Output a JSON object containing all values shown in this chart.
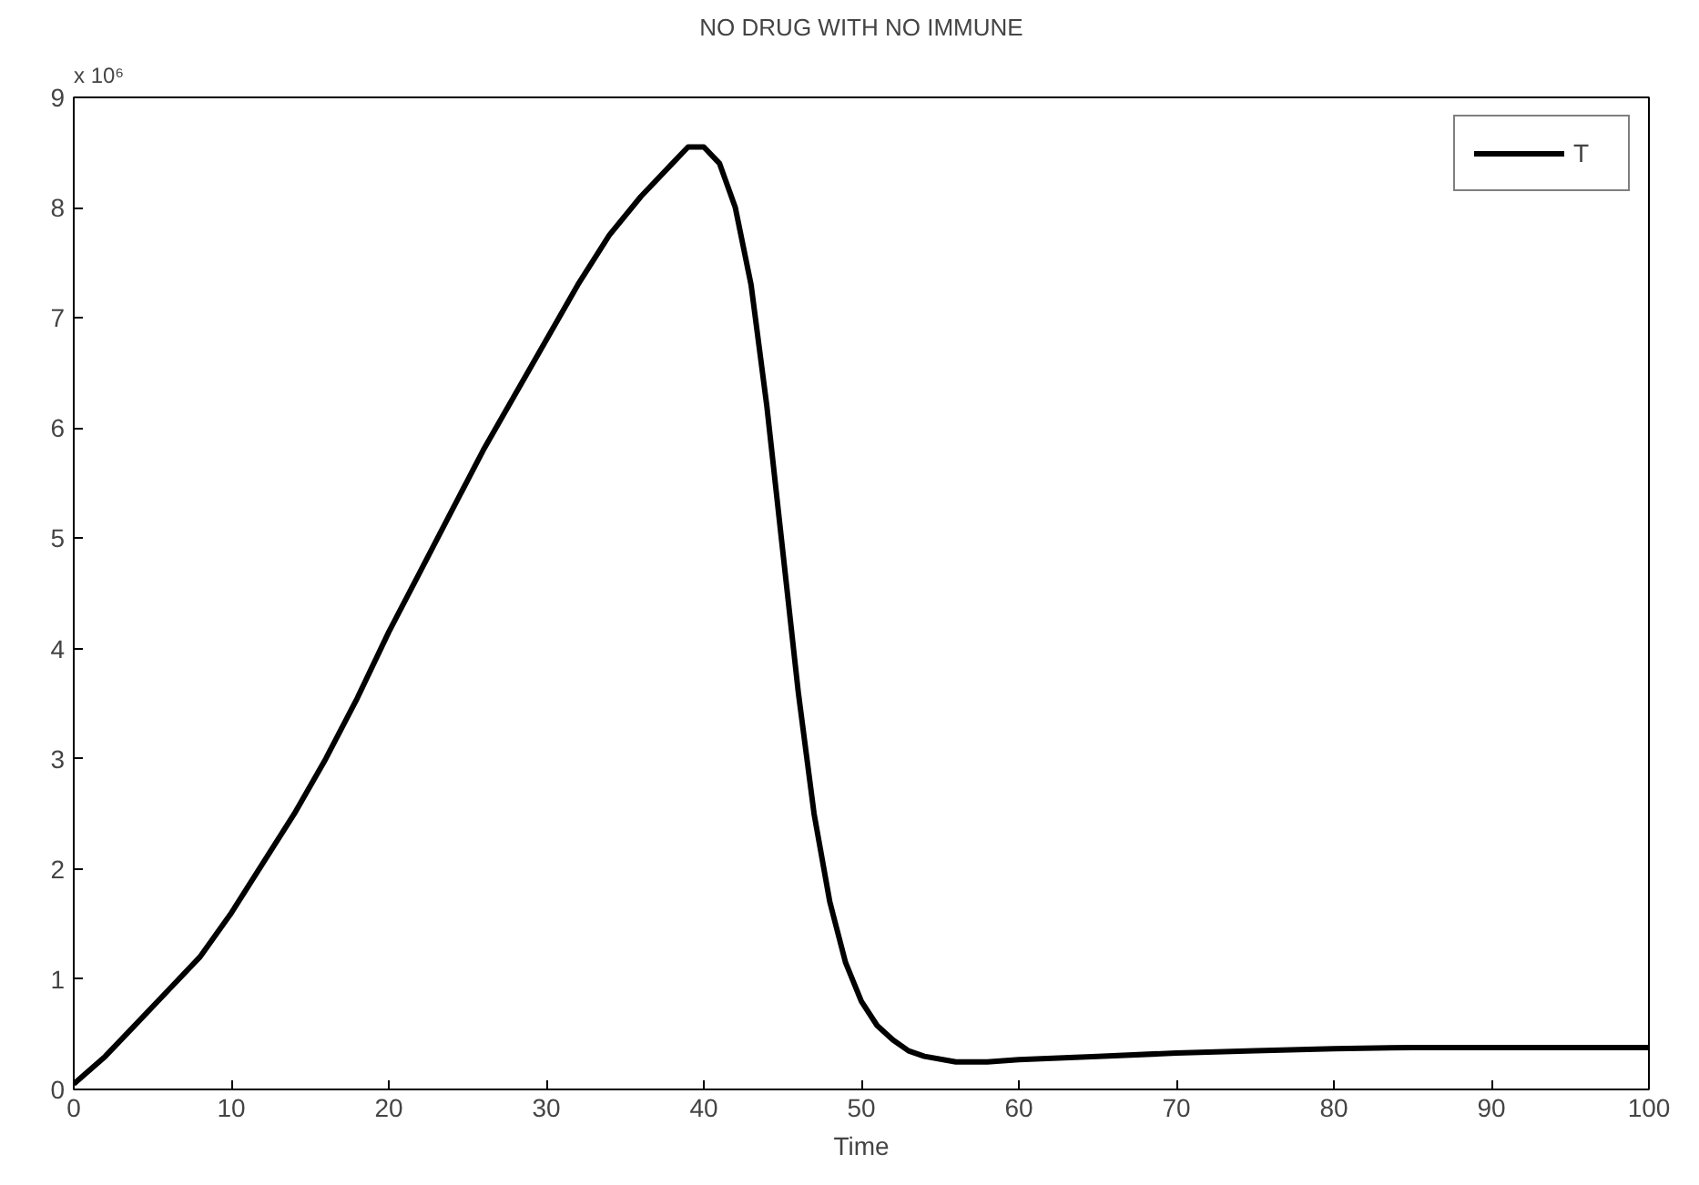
{
  "chart_data": {
    "type": "line",
    "title": "NO DRUG WITH NO IMMUNE",
    "xlabel": "Time",
    "annotations": [
      "x 10⁶"
    ],
    "x": [
      0,
      2,
      4,
      6,
      8,
      10,
      12,
      14,
      16,
      18,
      20,
      22,
      24,
      26,
      28,
      30,
      32,
      34,
      36,
      38,
      39,
      40,
      41,
      42,
      43,
      44,
      45,
      46,
      47,
      48,
      49,
      50,
      51,
      52,
      53,
      54,
      56,
      58,
      60,
      65,
      70,
      75,
      80,
      85,
      90,
      95,
      100
    ],
    "series": [
      {
        "name": "T",
        "color": "#000000",
        "values": [
          0.05,
          0.3,
          0.6,
          0.9,
          1.2,
          1.6,
          2.05,
          2.5,
          3.0,
          3.55,
          4.15,
          4.7,
          5.25,
          5.8,
          6.3,
          6.8,
          7.3,
          7.75,
          8.1,
          8.4,
          8.55,
          8.55,
          8.4,
          8.0,
          7.3,
          6.2,
          4.9,
          3.6,
          2.5,
          1.7,
          1.15,
          0.8,
          0.58,
          0.45,
          0.35,
          0.3,
          0.25,
          0.25,
          0.27,
          0.3,
          0.33,
          0.35,
          0.37,
          0.38,
          0.38,
          0.38,
          0.38
        ]
      }
    ],
    "xlim": [
      0,
      100
    ],
    "xticks": [
      0,
      10,
      20,
      30,
      40,
      50,
      60,
      70,
      80,
      90,
      100
    ],
    "ylim": [
      0,
      9
    ],
    "yticks": [
      0,
      1,
      2,
      3,
      4,
      5,
      6,
      7,
      8,
      9
    ],
    "legend": "top right",
    "grid": false,
    "line_style": "solid"
  }
}
